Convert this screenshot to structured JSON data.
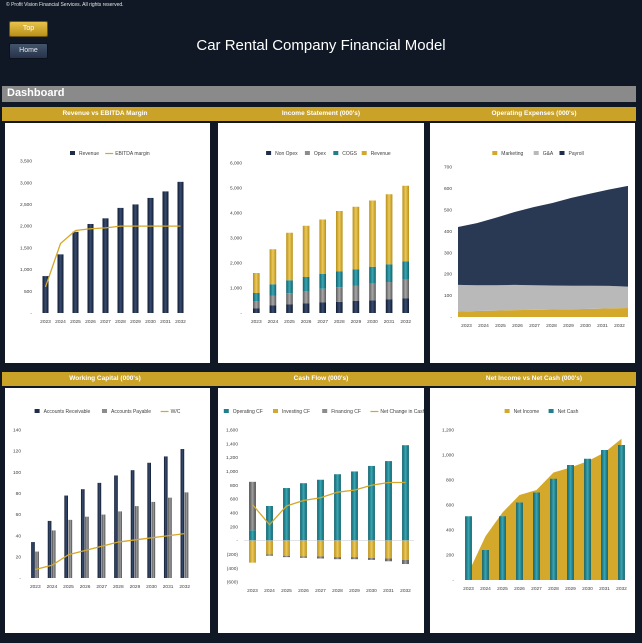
{
  "header": {
    "copyright": "© Profit Vision Financial Services. All rights reserved.",
    "top_label": "Top",
    "home_label": "Home",
    "title": "Car Rental Company Financial Model",
    "dashboard_label": "Dashboard"
  },
  "colors": {
    "navy": "#1e2d4a",
    "gold": "#d4a82a",
    "teal": "#1f7f8c",
    "gray": "#8c8c8c",
    "band": "#c9a227"
  },
  "chart_data": [
    {
      "type": "bar",
      "title": "Revenue vs EBITDA Margin",
      "categories": [
        "2023",
        "2024",
        "2025",
        "2026",
        "2027",
        "2028",
        "2029",
        "2030",
        "2031",
        "2032"
      ],
      "series": [
        {
          "name": "Revenue",
          "kind": "bar",
          "values": [
            850,
            1350,
            1870,
            2050,
            2180,
            2420,
            2500,
            2650,
            2800,
            3020
          ]
        },
        {
          "name": "EBITDA margin",
          "kind": "line",
          "values": [
            600,
            1600,
            1900,
            1940,
            1960,
            2000,
            2000,
            2000,
            2000,
            2000
          ]
        }
      ],
      "yticks": [
        "3,500",
        "3,000",
        "2,500",
        "2,000",
        "1,500",
        "1,000",
        "500",
        "-"
      ],
      "ylim": [
        0,
        3500
      ]
    },
    {
      "type": "bar",
      "title": "Income Statement (000's)",
      "categories": [
        "2023",
        "2024",
        "2025",
        "2026",
        "2027",
        "2028",
        "2029",
        "2030",
        "2031",
        "2032"
      ],
      "series": [
        {
          "name": "Non Opex",
          "values": [
            180,
            300,
            340,
            380,
            420,
            450,
            480,
            510,
            540,
            580
          ]
        },
        {
          "name": "Opex",
          "values": [
            300,
            400,
            450,
            500,
            550,
            580,
            620,
            660,
            700,
            750
          ]
        },
        {
          "name": "COGS",
          "values": [
            320,
            450,
            520,
            560,
            590,
            630,
            650,
            680,
            710,
            740
          ]
        },
        {
          "name": "Revenue",
          "values": [
            800,
            1400,
            1900,
            2050,
            2180,
            2420,
            2500,
            2650,
            2800,
            3020
          ]
        }
      ],
      "yticks": [
        "6,000",
        "5,000",
        "4,000",
        "3,000",
        "2,000",
        "1,000",
        "-"
      ],
      "ylim": [
        0,
        6000
      ]
    },
    {
      "type": "area",
      "title": "Operating Expenses (000's)",
      "categories": [
        "2023",
        "2024",
        "2025",
        "2026",
        "2027",
        "2028",
        "2029",
        "2030",
        "2031",
        "2032"
      ],
      "series": [
        {
          "name": "Marketing",
          "values": [
            25,
            28,
            30,
            32,
            33,
            35,
            36,
            38,
            40,
            42
          ]
        },
        {
          "name": "G&A",
          "values": [
            125,
            120,
            118,
            118,
            115,
            112,
            110,
            108,
            105,
            100
          ]
        },
        {
          "name": "Payroll",
          "values": [
            270,
            290,
            315,
            340,
            365,
            385,
            410,
            430,
            450,
            470
          ]
        }
      ],
      "yticks": [
        "700",
        "600",
        "500",
        "400",
        "300",
        "200",
        "100",
        "-"
      ],
      "ylim": [
        0,
        700
      ]
    },
    {
      "type": "bar",
      "title": "Working Capital (000's)",
      "categories": [
        "2023",
        "2024",
        "2025",
        "2026",
        "2027",
        "2028",
        "2029",
        "2030",
        "2031",
        "2032"
      ],
      "series": [
        {
          "name": "Accounts Receivable",
          "kind": "bar",
          "values": [
            34,
            54,
            78,
            84,
            90,
            97,
            102,
            109,
            115,
            122
          ]
        },
        {
          "name": "Accounts Payable",
          "kind": "bar",
          "values": [
            25,
            45,
            55,
            58,
            60,
            63,
            68,
            72,
            76,
            81
          ]
        },
        {
          "name": "W/C",
          "kind": "line",
          "values": [
            8,
            12,
            22,
            26,
            30,
            34,
            36,
            38,
            40,
            42
          ]
        }
      ],
      "yticks": [
        "140",
        "120",
        "100",
        "80",
        "60",
        "40",
        "20",
        "-"
      ],
      "ylim": [
        0,
        140
      ]
    },
    {
      "type": "bar",
      "title": "Cash Flow (000's)",
      "categories": [
        "2023",
        "2024",
        "2025",
        "2026",
        "2027",
        "2028",
        "2029",
        "2030",
        "2031",
        "2032"
      ],
      "series": [
        {
          "name": "Operating CF",
          "values": [
            150,
            500,
            760,
            830,
            880,
            960,
            1000,
            1080,
            1150,
            1380
          ]
        },
        {
          "name": "Investing CF",
          "values": [
            -320,
            -200,
            -220,
            -230,
            -230,
            -240,
            -240,
            -250,
            -260,
            -280
          ]
        },
        {
          "name": "Financing CF",
          "values": [
            700,
            -20,
            -20,
            -20,
            -30,
            -30,
            -30,
            -30,
            -40,
            -60
          ]
        },
        {
          "name": "Net Change in Cash",
          "kind": "line",
          "values": [
            520,
            230,
            500,
            580,
            620,
            700,
            730,
            800,
            840,
            840
          ]
        }
      ],
      "yticks": [
        "1,600",
        "1,400",
        "1,200",
        "1,000",
        "800",
        "600",
        "400",
        "200",
        "-",
        "(200)",
        "(400)",
        "(600)"
      ],
      "ylim": [
        -600,
        1600
      ]
    },
    {
      "type": "bar",
      "title": "Net Income vs Net Cash (000's)",
      "categories": [
        "2023",
        "2024",
        "2025",
        "2026",
        "2027",
        "2028",
        "2029",
        "2030",
        "2031",
        "2032"
      ],
      "series": [
        {
          "name": "Net Income",
          "kind": "area",
          "values": [
            60,
            350,
            540,
            680,
            720,
            860,
            900,
            950,
            1020,
            1130
          ]
        },
        {
          "name": "Net Cash",
          "kind": "bar",
          "values": [
            510,
            240,
            510,
            620,
            700,
            810,
            920,
            970,
            1040,
            1080
          ]
        }
      ],
      "yticks": [
        "1,200",
        "1,000",
        "800",
        "600",
        "400",
        "200",
        "-"
      ],
      "ylim": [
        0,
        1200
      ]
    }
  ]
}
